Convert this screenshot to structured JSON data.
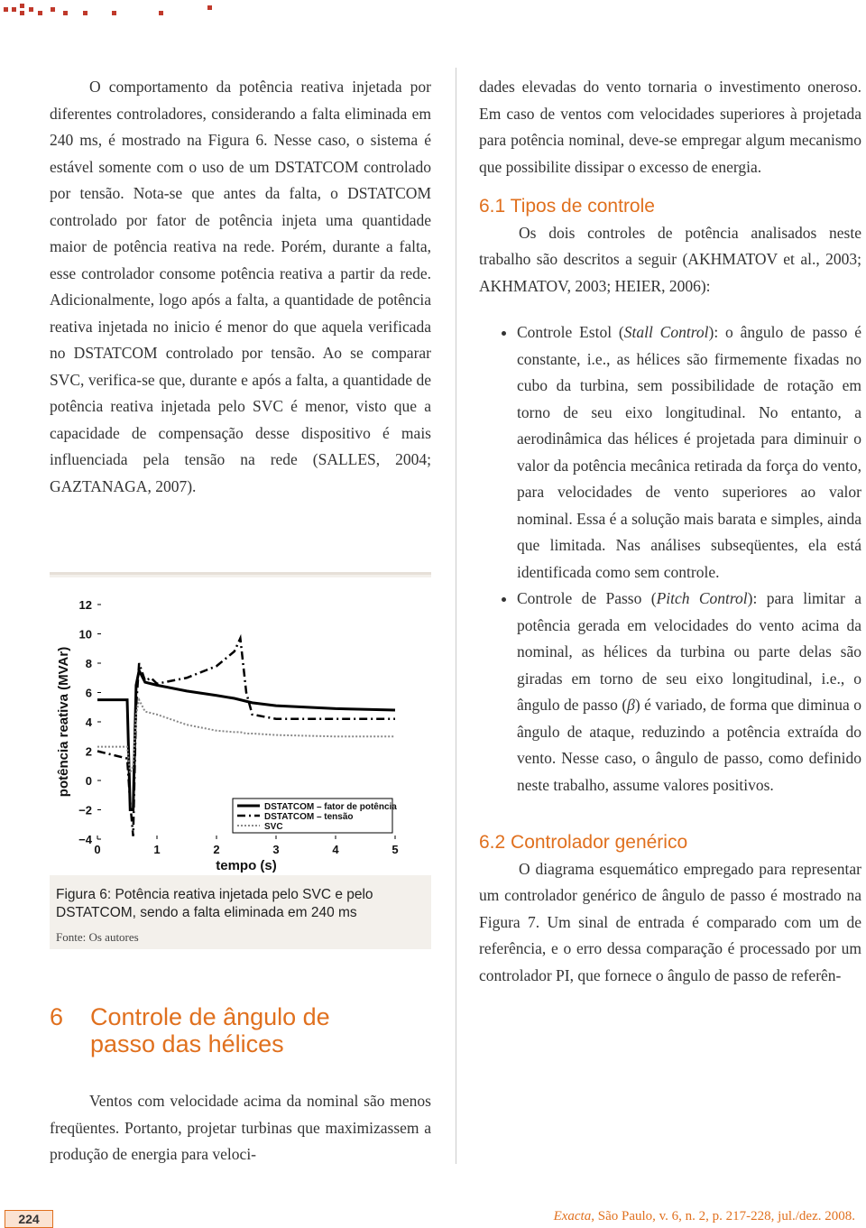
{
  "left": {
    "paragraph": "O comportamento da potência reativa injetada por diferentes controladores, considerando a falta eliminada em 240 ms, é mostrado na Figura 6. Nesse caso, o sistema é estável somente com o uso de um DSTATCOM controlado por tensão. Nota-se que antes da falta, o DSTATCOM controlado por fator de potência injeta uma quantidade maior de potência reativa na rede. Porém, durante a falta, esse controlador consome potência reativa a partir da rede. Adicionalmente, logo após a falta, a quantidade de potência reativa injetada no inicio é menor do que aquela verificada no DSTATCOM controlado por tensão. Ao se comparar SVC, verifica-se que, durante e após a falta, a quantidade de potência reativa injetada pelo SVC é menor, visto que a capacidade de compensação desse dispositivo é mais influenciada pela tensão na rede (SALLES, 2004; GAZTANAGA, 2007).",
    "section_number": "6",
    "section_title": "Controle de ângulo de passo das hélices",
    "section_paragraph": "Ventos com velocidade acima da nominal são menos freqüentes. Portanto, projetar turbinas que maximizassem a produção de energia para veloci-"
  },
  "figure": {
    "caption": "Figura 6: Potência reativa injetada pelo SVC e pelo DSTATCOM, sendo a falta eliminada em 240 ms",
    "source": "Fonte: Os autores",
    "chart_data": {
      "type": "line",
      "xlabel": "tempo (s)",
      "ylabel": "potência reativa (MVAr)",
      "x": [
        0,
        0.5,
        0.55,
        0.6,
        0.65,
        0.7,
        0.8,
        0.9,
        1,
        1.5,
        2,
        2.3,
        2.4,
        2.5,
        2.6,
        3,
        4,
        5
      ],
      "series": [
        {
          "name": "DSTATCOM – fator de potência",
          "color": "#000000",
          "dash": "solid",
          "values": [
            5.5,
            5.5,
            -2,
            -2,
            6.5,
            7.5,
            6.7,
            6.6,
            6.5,
            6.1,
            5.8,
            5.6,
            5.5,
            5.4,
            5.3,
            5.1,
            4.9,
            4.8
          ]
        },
        {
          "name": "DSTATCOM – tensão",
          "color": "#000000",
          "dash": "dashdot",
          "values": [
            2,
            1.5,
            -1.5,
            -3.8,
            5,
            8,
            6.8,
            7,
            6.6,
            7,
            7.8,
            8.8,
            9.7,
            6,
            4.5,
            4.2,
            4.2,
            4.2
          ]
        },
        {
          "name": "SVC",
          "color": "#888888",
          "dash": "dotted",
          "values": [
            2.3,
            2.3,
            0.5,
            1,
            4.5,
            5.5,
            4.7,
            4.6,
            4.5,
            3.8,
            3.4,
            3.3,
            3.3,
            3.2,
            3.2,
            3.1,
            3,
            3
          ]
        }
      ],
      "xlim": [
        0,
        5
      ],
      "xticks": [
        0,
        1,
        2,
        3,
        4,
        5
      ],
      "ylim": [
        -4,
        12
      ],
      "yticks": [
        {
          "value": -4,
          "label": "−4"
        },
        {
          "value": -2,
          "label": "−2"
        },
        0,
        2,
        4,
        6,
        8,
        10,
        12
      ],
      "legend": "lower right"
    }
  },
  "right": {
    "paragraph": "dades elevadas do vento tornaria o investimento oneroso. Em caso de ventos com velocidades superiores à projetada para potência nominal, deve-se empregar algum mecanismo que possibilite dissipar o excesso de energia.",
    "s61_title": "6.1 Tipos de controle",
    "s61_paragraph": "Os dois controles de potência analisados neste trabalho são descritos a seguir (AKHMATOV et al., 2003; AKHMATOV, 2003; HEIER, 2006):",
    "bullets": [
      [
        "Controle Estol (",
        "Stall Control",
        "): o ângulo de passo é constante, i.e., as hélices são firmemente fixadas no cubo da turbina, sem possibilidade de rotação em torno de seu eixo longitudinal. No entanto, a aerodinâmica das hélices é projetada para diminuir o valor da potência mecânica retirada da força do vento, para velocidades de vento superiores ao valor nominal. Essa é a solução mais barata e simples, ainda que limitada. Nas análises subseqüentes, ela está identificada como sem controle."
      ],
      [
        "Controle de Passo (",
        "Pitch Control",
        "): para limitar a potência gerada em velocidades do vento acima da nominal, as hélices da turbina ou parte delas são giradas em torno de seu eixo longitudinal, i.e., o ângulo de passo (",
        "β",
        ") é variado, de forma que diminua o ângulo de ataque, reduzindo a potência extraída do vento. Nesse caso, o ângulo de passo, como definido neste trabalho, assume valores positivos."
      ]
    ],
    "s62_title": "6.2 Controlador genérico",
    "s62_paragraph": "O diagrama esquemático empregado para representar um controlador genérico de ângulo de passo é mostrado na Figura 7. Um sinal de entrada é comparado com um de referência, e o erro dessa comparação é processado por um controlador PI, que fornece o ângulo de passo de referên-"
  },
  "footer": {
    "page": "224",
    "journal": "Exacta",
    "citation": ", São Paulo, v. 6, n. 2, p. 217-228, jul./dez. 2008."
  }
}
